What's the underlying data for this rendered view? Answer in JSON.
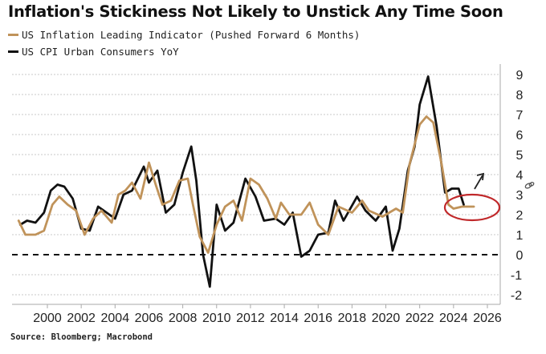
{
  "header": {
    "title": "Inflation's Stickiness Not Likely to Unstick Any Time Soon"
  },
  "legend": [
    {
      "label": "US Inflation Leading Indicator (Pushed Forward 6 Months)",
      "color": "#c0935a"
    },
    {
      "label": "US CPI Urban Consumers YoY",
      "color": "#111111"
    }
  ],
  "footer": {
    "source": "Source: Bloomberg; Macrobond"
  },
  "annotations": {
    "circle_color": "#c0282a",
    "arrow": "up-right-arrow",
    "marker": "paperclip-icon"
  },
  "chart_data": {
    "type": "line",
    "title": "Inflation's Stickiness Not Likely to Unstick Any Time Soon",
    "xlabel": "",
    "ylabel": "",
    "xlim": [
      1998.2,
      2026.8
    ],
    "ylim": [
      -2.4,
      9.4
    ],
    "x_ticks": [
      "2000",
      "2002",
      "2004",
      "2006",
      "2008",
      "2010",
      "2012",
      "2014",
      "2016",
      "2018",
      "2020",
      "2022",
      "2024",
      "2026"
    ],
    "y_ticks": [
      "9",
      "8",
      "7",
      "6",
      "5",
      "4",
      "3",
      "2",
      "1",
      "0",
      "-1",
      "-2"
    ],
    "y_axis_side": "right",
    "grid": "horizontal-dotted",
    "zero_line": "dashed",
    "legend_position": "top-left",
    "series": [
      {
        "name": "US CPI Urban Consumers YoY",
        "color": "#111111",
        "x": [
          1998.4,
          1998.8,
          1999.3,
          1999.8,
          2000.2,
          2000.6,
          2001.0,
          2001.5,
          2002.0,
          2002.5,
          2003.0,
          2003.5,
          2004.0,
          2004.5,
          2005.0,
          2005.7,
          2006.0,
          2006.5,
          2007.0,
          2007.5,
          2008.0,
          2008.5,
          2008.8,
          2009.2,
          2009.6,
          2010.0,
          2010.5,
          2011.0,
          2011.7,
          2012.3,
          2012.8,
          2013.5,
          2014.0,
          2014.5,
          2015.0,
          2015.5,
          2016.0,
          2016.6,
          2017.0,
          2017.5,
          2018.3,
          2018.8,
          2019.4,
          2020.0,
          2020.4,
          2020.8,
          2021.3,
          2021.7,
          2022.0,
          2022.5,
          2023.0,
          2023.5,
          2023.9,
          2024.3,
          2024.6
        ],
        "values": [
          1.5,
          1.7,
          1.6,
          2.1,
          3.2,
          3.5,
          3.4,
          2.8,
          1.3,
          1.2,
          2.4,
          2.1,
          1.8,
          3.0,
          3.2,
          4.4,
          3.6,
          4.2,
          2.1,
          2.5,
          4.1,
          5.4,
          3.7,
          0.0,
          -1.6,
          2.5,
          1.2,
          1.6,
          3.8,
          2.9,
          1.7,
          1.8,
          1.5,
          2.1,
          -0.1,
          0.2,
          1.0,
          1.1,
          2.7,
          1.7,
          2.9,
          2.2,
          1.7,
          2.4,
          0.2,
          1.3,
          4.2,
          5.4,
          7.5,
          8.9,
          6.4,
          3.1,
          3.3,
          3.3,
          2.5
        ]
      },
      {
        "name": "US Inflation Leading Indicator (Pushed Forward 6 Months)",
        "color": "#c0935a",
        "x": [
          1998.3,
          1998.7,
          1999.3,
          1999.8,
          2000.3,
          2000.7,
          2001.2,
          2001.7,
          2002.2,
          2002.7,
          2003.2,
          2003.8,
          2004.2,
          2004.6,
          2005.0,
          2005.5,
          2006.0,
          2006.4,
          2006.8,
          2007.3,
          2007.8,
          2008.3,
          2008.6,
          2009.0,
          2009.5,
          2010.0,
          2010.5,
          2011.0,
          2011.5,
          2012.0,
          2012.5,
          2013.0,
          2013.5,
          2013.8,
          2014.3,
          2015.0,
          2015.5,
          2016.0,
          2016.6,
          2017.2,
          2018.0,
          2018.6,
          2019.0,
          2019.8,
          2020.6,
          2021.0,
          2021.4,
          2022.0,
          2022.4,
          2022.8,
          2023.3,
          2023.7,
          2024.0,
          2024.5,
          2025.2
        ],
        "values": [
          1.7,
          1.0,
          1.0,
          1.2,
          2.5,
          2.9,
          2.5,
          2.2,
          1.0,
          1.8,
          2.2,
          1.6,
          3.0,
          3.2,
          3.6,
          2.8,
          4.6,
          3.5,
          2.5,
          2.7,
          3.7,
          3.8,
          2.5,
          0.9,
          0.1,
          1.5,
          2.4,
          2.7,
          1.7,
          3.8,
          3.5,
          2.8,
          1.8,
          2.6,
          2.0,
          2.0,
          2.6,
          1.5,
          1.0,
          2.4,
          2.1,
          2.7,
          2.2,
          1.9,
          2.3,
          2.1,
          4.5,
          6.5,
          6.9,
          6.6,
          4.5,
          2.5,
          2.3,
          2.4,
          2.4
        ]
      }
    ]
  }
}
